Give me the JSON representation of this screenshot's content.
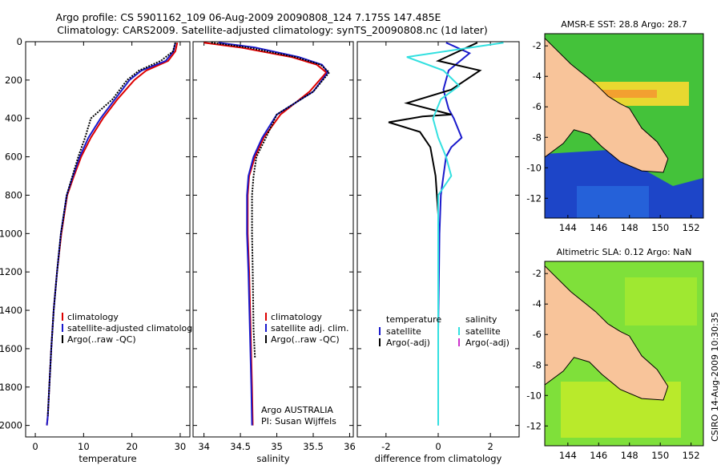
{
  "header": {
    "line1": "Argo profile: CS 5901162_109 06-Aug-2009 20090808_124 7.175S 147.485E",
    "line2": "Climatology: CARS2009. Satellite-adjusted climatology: synTS_20090808.nc (1d later)"
  },
  "side_label": "CSIRO 14-Aug-2009 10:30:35",
  "colors": {
    "climatology": "#dd0000",
    "satellite": "#1a1acc",
    "argo": "#000000",
    "sal_satellite": "#33e0e0",
    "sal_argo": "#cc33cc",
    "land": "#f8c49a",
    "coast": "#000000"
  },
  "chart_data": [
    {
      "id": "temperature",
      "type": "line",
      "xlabel": "temperature",
      "xticks": [
        0,
        10,
        20,
        30
      ],
      "xlim": [
        -2,
        32
      ],
      "ylim": [
        0,
        2060
      ],
      "yticks": [
        0,
        200,
        400,
        600,
        800,
        1000,
        1200,
        1400,
        1600,
        1800,
        2000
      ],
      "y_reversed": true,
      "legend": [
        "climatology",
        "satellite-adjusted climatology",
        "Argo(..raw -QC)"
      ],
      "series": [
        {
          "name": "climatology",
          "color": "#dd0000",
          "x": [
            29.4,
            29.0,
            27.5,
            23.0,
            20.5,
            17.0,
            14.0,
            11.5,
            9.5,
            8.0,
            6.6,
            5.4,
            4.5,
            3.8,
            3.3,
            2.9,
            2.6,
            2.4
          ],
          "y": [
            5,
            50,
            100,
            150,
            200,
            300,
            400,
            500,
            600,
            700,
            800,
            1000,
            1200,
            1400,
            1600,
            1800,
            1950,
            2000
          ]
        },
        {
          "name": "satellite-adjusted climatology",
          "color": "#1a1acc",
          "x": [
            29.0,
            28.6,
            27.0,
            22.0,
            19.5,
            16.5,
            13.5,
            11.0,
            9.2,
            7.8,
            6.5,
            5.3,
            4.5,
            3.8,
            3.3,
            2.9,
            2.6,
            2.4
          ],
          "y": [
            5,
            50,
            100,
            150,
            200,
            300,
            400,
            500,
            600,
            700,
            800,
            1000,
            1200,
            1400,
            1600,
            1800,
            1950,
            2000
          ]
        },
        {
          "name": "Argo(..raw -QC)",
          "color": "#000000",
          "x": [
            29.0,
            28.5,
            26.0,
            21.5,
            19.0,
            16.0,
            11.5,
            10.3,
            8.9,
            7.7,
            6.5,
            5.3,
            4.5,
            3.8,
            3.3,
            2.9,
            2.6
          ],
          "y": [
            5,
            50,
            100,
            150,
            200,
            300,
            400,
            500,
            600,
            700,
            800,
            1000,
            1200,
            1400,
            1600,
            1800,
            1950
          ]
        }
      ]
    },
    {
      "id": "salinity",
      "type": "line",
      "xlabel": "salinity",
      "xticks": [
        34,
        34.5,
        35,
        35.5,
        36
      ],
      "xlim": [
        33.85,
        36.05
      ],
      "ylim": [
        0,
        2060
      ],
      "y_reversed": true,
      "legend": [
        "climatology",
        "satellite adj. clim.",
        "Argo(..raw -QC)"
      ],
      "annotation": [
        "Argo AUSTRALIA",
        "PI: Susan Wijffels"
      ],
      "series": [
        {
          "name": "climatology",
          "color": "#dd0000",
          "x": [
            34.0,
            34.5,
            35.2,
            35.55,
            35.68,
            35.45,
            35.05,
            34.82,
            34.7,
            34.62,
            34.6,
            34.6,
            34.62,
            34.64,
            34.66,
            34.67
          ],
          "y": [
            5,
            30,
            80,
            120,
            160,
            260,
            380,
            500,
            600,
            700,
            800,
            1000,
            1200,
            1500,
            1800,
            2000
          ]
        },
        {
          "name": "satellite adj. clim.",
          "color": "#1a1acc",
          "x": [
            34.2,
            34.7,
            35.3,
            35.62,
            35.7,
            35.5,
            35.0,
            34.8,
            34.68,
            34.61,
            34.59,
            34.59,
            34.61,
            34.63,
            34.65,
            34.66
          ],
          "y": [
            5,
            30,
            80,
            120,
            160,
            260,
            380,
            500,
            600,
            700,
            800,
            1000,
            1200,
            1500,
            1800,
            2000
          ]
        },
        {
          "name": "Argo(..raw -QC)",
          "color": "#000000",
          "x": [
            34.1,
            34.6,
            35.25,
            35.6,
            35.72,
            35.5,
            35.0,
            34.85,
            34.72,
            34.68,
            34.66,
            34.66,
            34.67,
            34.68,
            34.7
          ],
          "y": [
            5,
            30,
            80,
            120,
            160,
            260,
            380,
            500,
            600,
            700,
            800,
            1000,
            1200,
            1500,
            1650
          ]
        }
      ]
    },
    {
      "id": "difference",
      "type": "line",
      "xlabel": "difference from climatology",
      "xticks": [
        -2,
        0,
        2
      ],
      "xlim": [
        -3.1,
        3.1
      ],
      "ylim": [
        0,
        2060
      ],
      "y_reversed": true,
      "legend_groups": [
        {
          "title": "temperature",
          "items": [
            "satellite",
            "Argo(-adj)"
          ]
        },
        {
          "title": "salinity",
          "items": [
            "satellite",
            "Argo(-adj)"
          ]
        }
      ],
      "series": [
        {
          "name": "temperature satellite",
          "color": "#1a1acc",
          "x": [
            0.3,
            1.2,
            0.4,
            0.2,
            0.4,
            0.6,
            0.9,
            0.5,
            0.3,
            0.2,
            0.1,
            0.05,
            0.03,
            0.0,
            0.0,
            0.0
          ],
          "y": [
            5,
            60,
            150,
            250,
            350,
            400,
            500,
            550,
            600,
            700,
            800,
            1000,
            1200,
            1500,
            1800,
            2000
          ]
        },
        {
          "name": "temperature Argo(-adj)",
          "color": "#000000",
          "x": [
            1.5,
            0.0,
            1.6,
            0.5,
            -1.2,
            0.5,
            -0.6,
            -1.9,
            -0.7,
            -0.3,
            -0.1,
            0.0,
            0.0,
            0.0,
            0.0
          ],
          "y": [
            5,
            100,
            150,
            250,
            320,
            380,
            390,
            420,
            470,
            550,
            700,
            900,
            1200,
            1500,
            1950
          ]
        },
        {
          "name": "salinity satellite",
          "color": "#33e0e0",
          "x": [
            2.5,
            -1.2,
            0.2,
            0.8,
            0.1,
            -0.2,
            0.0,
            0.3,
            0.5,
            0.0,
            0.0,
            0.0,
            0.0
          ],
          "y": [
            5,
            80,
            150,
            230,
            300,
            400,
            500,
            600,
            700,
            800,
            1000,
            1500,
            2000
          ]
        },
        {
          "name": "salinity Argo(-adj)",
          "color": "#cc33cc",
          "x": [],
          "y": []
        }
      ]
    }
  ],
  "maps": [
    {
      "id": "sst-map",
      "title": "AMSR-E SST: 28.8 Argo: 28.7",
      "xticks": [
        144,
        146,
        148,
        150,
        152
      ],
      "yticks": [
        -2,
        -4,
        -6,
        -8,
        -10,
        -12
      ]
    },
    {
      "id": "sla-map",
      "title": "Altimetric SLA: 0.12 Argo: NaN",
      "xticks": [
        144,
        146,
        148,
        150,
        152
      ],
      "yticks": [
        -2,
        -4,
        -6,
        -8,
        -10,
        -12
      ]
    }
  ]
}
